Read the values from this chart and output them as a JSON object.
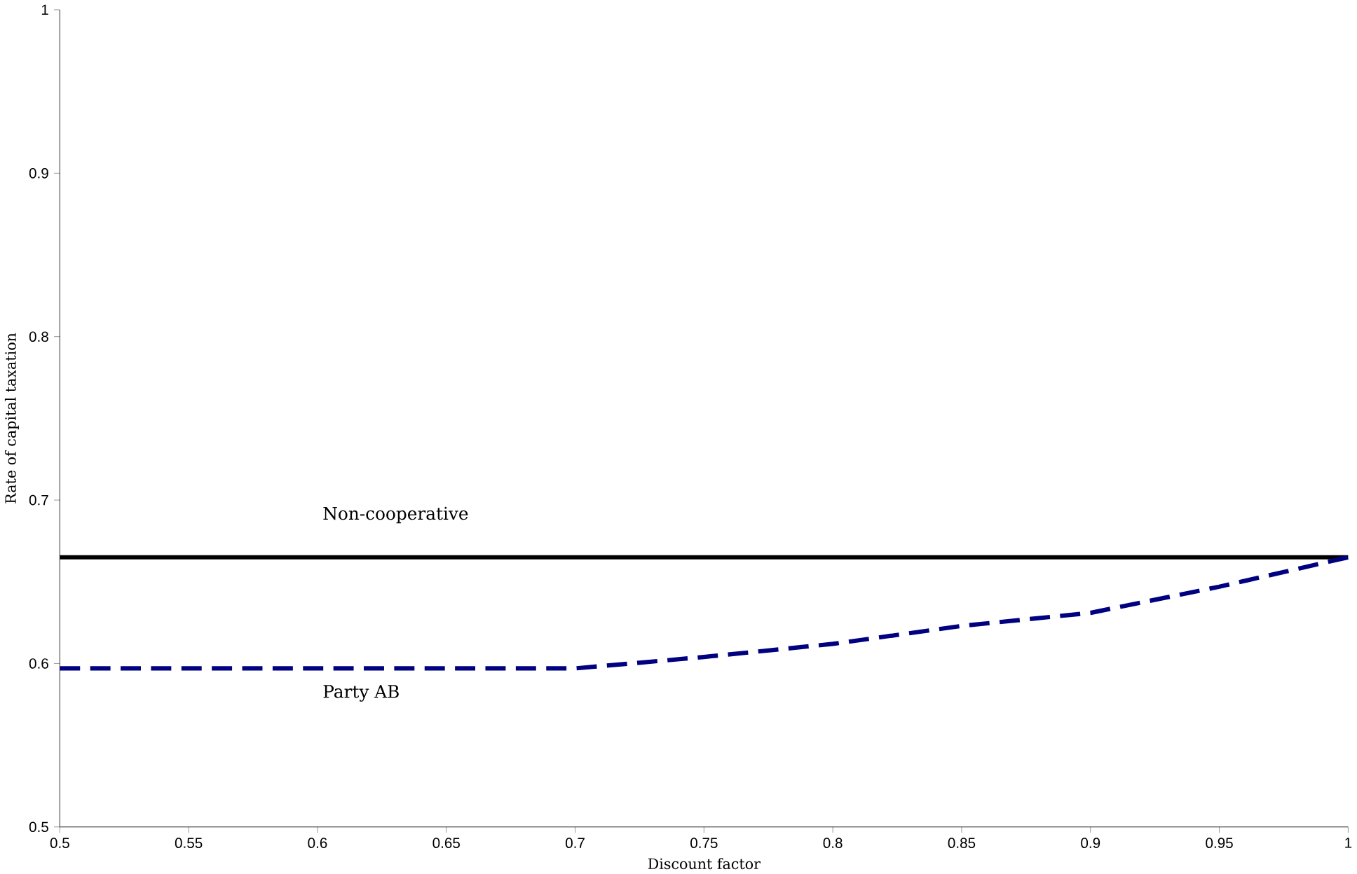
{
  "chart_data": {
    "type": "line",
    "xlabel": "Discount factor",
    "ylabel": "Rate of capital taxation",
    "x": [
      0.5,
      0.55,
      0.6,
      0.65,
      0.7,
      0.75,
      0.8,
      0.85,
      0.9,
      0.95,
      1.0
    ],
    "series": [
      {
        "name": "Non-cooperative",
        "color": "#000000",
        "line_style": "solid",
        "values": [
          0.665,
          0.665,
          0.665,
          0.665,
          0.665,
          0.665,
          0.665,
          0.665,
          0.665,
          0.665,
          0.665
        ]
      },
      {
        "name": "Party AB",
        "color": "#000080",
        "line_style": "dashed",
        "values": [
          0.597,
          0.597,
          0.597,
          0.597,
          0.597,
          0.604,
          0.612,
          0.623,
          0.631,
          0.647,
          0.665
        ]
      }
    ],
    "xlim": [
      0.5,
      1
    ],
    "ylim": [
      0.5,
      1
    ],
    "xticks": [
      0.5,
      0.55,
      0.6,
      0.65,
      0.7,
      0.75,
      0.8,
      0.85,
      0.9,
      0.95,
      1
    ],
    "yticks": [
      0.5,
      0.6,
      0.7,
      0.8,
      0.9,
      1
    ],
    "grid": false,
    "marker": "none"
  }
}
